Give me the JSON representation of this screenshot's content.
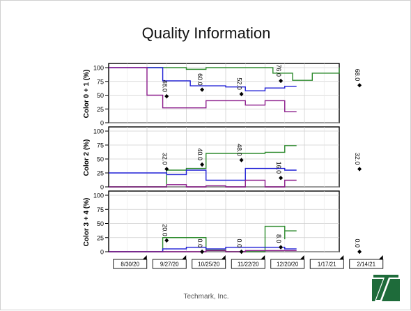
{
  "slide": {
    "title": "Quality Information",
    "footer": "Techmark, Inc."
  },
  "colors": {
    "green": "#2e8b2e",
    "blue": "#1f1fd6",
    "purple": "#8a1a8a",
    "marker": "#000000",
    "logo_green": "#1e6b3a"
  },
  "chart_data": {
    "type": "line",
    "x_tick_labels": [
      "8/30/20",
      "9/27/20",
      "10/25/20",
      "11/22/20",
      "12/20/20",
      "1/17/21",
      "2/14/21"
    ],
    "panels": [
      {
        "ylabel": "Color 0 + 1 (%)",
        "ylim": [
          0,
          100
        ],
        "yticks": [
          "0",
          "25",
          "50",
          "75",
          "100"
        ],
        "series": [
          {
            "color": "green",
            "values": [
              [
                0,
                100
              ],
              [
                1,
                97
              ],
              [
                1.5,
                100
              ],
              [
                2.5,
                100
              ],
              [
                3.2,
                90
              ],
              [
                3.7,
                77
              ],
              [
                4.2,
                90
              ],
              [
                4.5,
                90
              ],
              [
                4.9,
                100
              ],
              [
                5.7,
                100
              ],
              [
                6.5,
                100
              ]
            ]
          },
          {
            "color": "blue",
            "values": [
              [
                -1.2,
                100
              ],
              [
                -0.2,
                100
              ],
              [
                0.4,
                76
              ],
              [
                1.1,
                67
              ],
              [
                2,
                65
              ],
              [
                2.5,
                58
              ],
              [
                3,
                63
              ],
              [
                3.5,
                66
              ],
              [
                3.8,
                66
              ]
            ]
          },
          {
            "color": "blue",
            "values": [
              [
                5.3,
                64
              ],
              [
                5.9,
                64
              ]
            ]
          },
          {
            "color": "purple",
            "values": [
              [
                -1.2,
                100
              ],
              [
                -0.2,
                100
              ],
              [
                0,
                50
              ],
              [
                0.4,
                27
              ],
              [
                1,
                27
              ],
              [
                1.5,
                40
              ],
              [
                2,
                40
              ],
              [
                2.5,
                32
              ],
              [
                3,
                40
              ],
              [
                3.5,
                20
              ],
              [
                3.8,
                20
              ]
            ]
          },
          {
            "color": "purple",
            "values": [
              [
                5.3,
                41
              ],
              [
                5.9,
                41
              ]
            ]
          }
        ],
        "markers": [
          {
            "x": 0.5,
            "y": 48,
            "label": "48.0"
          },
          {
            "x": 1.4,
            "y": 60,
            "label": "60.0"
          },
          {
            "x": 2.4,
            "y": 52,
            "label": "52.0"
          },
          {
            "x": 3.4,
            "y": 76,
            "label": "76.0"
          },
          {
            "x": 5.4,
            "y": 68,
            "label": "68.0"
          }
        ]
      },
      {
        "ylabel": "Color 2 (%)",
        "ylim": [
          0,
          100
        ],
        "yticks": [
          "0",
          "25",
          "50",
          "75",
          "100"
        ],
        "series": [
          {
            "color": "green",
            "values": [
              [
                -1.2,
                0
              ],
              [
                -0.2,
                0
              ],
              [
                0.5,
                30
              ],
              [
                1,
                33
              ],
              [
                1.5,
                60
              ],
              [
                2.5,
                60
              ],
              [
                3,
                62
              ],
              [
                3.5,
                74
              ],
              [
                3.8,
                74
              ]
            ]
          },
          {
            "color": "green",
            "values": [
              [
                5.3,
                54
              ],
              [
                5.9,
                54
              ]
            ]
          },
          {
            "color": "blue",
            "values": [
              [
                -1.2,
                25
              ],
              [
                -0.2,
                25
              ],
              [
                0.5,
                22
              ],
              [
                1,
                30
              ],
              [
                1.5,
                12
              ],
              [
                2,
                12
              ],
              [
                2.5,
                33
              ],
              [
                3,
                33
              ],
              [
                3.5,
                30
              ],
              [
                3.8,
                30
              ]
            ]
          },
          {
            "color": "blue",
            "values": [
              [
                5.3,
                28
              ],
              [
                5.9,
                28
              ]
            ]
          },
          {
            "color": "purple",
            "values": [
              [
                -1.2,
                0
              ],
              [
                0,
                0
              ],
              [
                0.5,
                4
              ],
              [
                1,
                0
              ],
              [
                1.5,
                2
              ],
              [
                2,
                0
              ],
              [
                2.5,
                12
              ],
              [
                3,
                0
              ],
              [
                3.5,
                12
              ],
              [
                3.8,
                12
              ]
            ]
          }
        ],
        "markers": [
          {
            "x": 0.5,
            "y": 32,
            "label": "32.0"
          },
          {
            "x": 1.4,
            "y": 40,
            "label": "40.0"
          },
          {
            "x": 2.4,
            "y": 48,
            "label": "48.0"
          },
          {
            "x": 3.4,
            "y": 16,
            "label": "16.0"
          },
          {
            "x": 5.4,
            "y": 32,
            "label": "32.0"
          }
        ]
      },
      {
        "ylabel": "Color 3 + 4 (%)",
        "ylim": [
          0,
          100
        ],
        "yticks": [
          "0",
          "25",
          "50",
          "75",
          "100"
        ],
        "series": [
          {
            "color": "green",
            "values": [
              [
                -1.2,
                0
              ],
              [
                0,
                0
              ],
              [
                0.4,
                25
              ],
              [
                1,
                25
              ],
              [
                1.5,
                3
              ],
              [
                2,
                0
              ],
              [
                2.5,
                0
              ],
              [
                3,
                45
              ],
              [
                3.5,
                22
              ],
              [
                3.5,
                37
              ],
              [
                3.8,
                37
              ]
            ]
          },
          {
            "color": "green",
            "values": [
              [
                5.3,
                17
              ],
              [
                5.9,
                17
              ]
            ]
          },
          {
            "color": "blue",
            "values": [
              [
                -1.2,
                0
              ],
              [
                0,
                0
              ],
              [
                0.4,
                5
              ],
              [
                1,
                8
              ],
              [
                1.5,
                5
              ],
              [
                2,
                8
              ],
              [
                2.5,
                8
              ],
              [
                3,
                8
              ],
              [
                3.5,
                5
              ],
              [
                3.8,
                5
              ]
            ]
          },
          {
            "color": "blue",
            "values": [
              [
                5.3,
                8
              ],
              [
                5.9,
                8
              ]
            ]
          },
          {
            "color": "purple",
            "values": [
              [
                -1.2,
                0
              ],
              [
                0,
                0
              ],
              [
                0.4,
                0
              ],
              [
                1,
                0
              ],
              [
                1.5,
                2
              ],
              [
                2,
                0
              ],
              [
                2.5,
                2
              ],
              [
                3,
                2
              ],
              [
                3.5,
                2
              ],
              [
                3.8,
                2
              ]
            ]
          }
        ],
        "markers": [
          {
            "x": 0.5,
            "y": 20,
            "label": "20.0"
          },
          {
            "x": 1.4,
            "y": 0,
            "label": "0.0"
          },
          {
            "x": 2.4,
            "y": 0,
            "label": "0.0"
          },
          {
            "x": 3.4,
            "y": 8,
            "label": "8.0"
          },
          {
            "x": 5.4,
            "y": 0,
            "label": "0.0"
          }
        ]
      }
    ]
  }
}
